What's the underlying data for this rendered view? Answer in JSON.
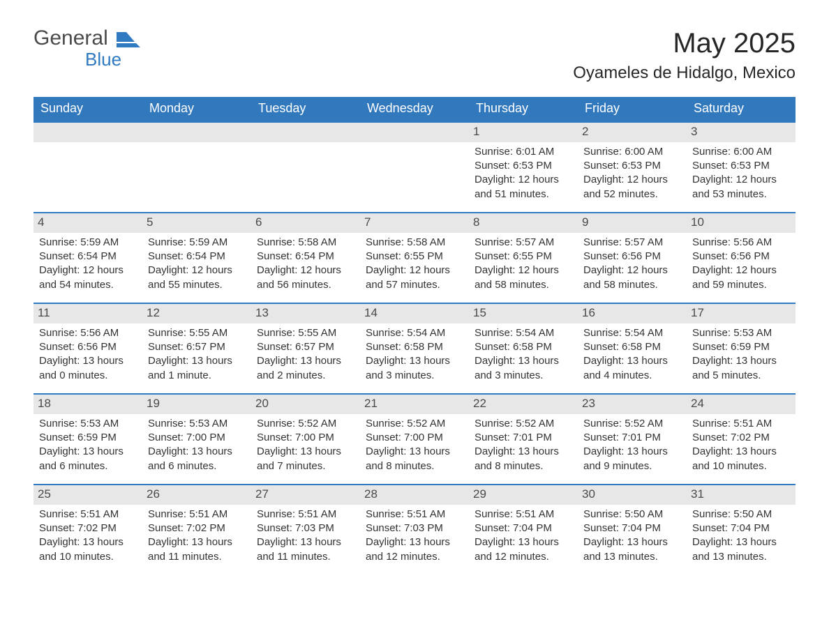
{
  "logo": {
    "word1": "General",
    "word2": "Blue"
  },
  "title": "May 2025",
  "location": "Oyameles de Hidalgo, Mexico",
  "colors": {
    "header_bg": "#3278bd",
    "accent_line": "#2f7ac0",
    "daynum_bg": "#e7e7e7",
    "text": "#333333",
    "logo_gray": "#4a4a4a",
    "logo_blue": "#2f7ac0",
    "page_bg": "#ffffff"
  },
  "day_headers": [
    "Sunday",
    "Monday",
    "Tuesday",
    "Wednesday",
    "Thursday",
    "Friday",
    "Saturday"
  ],
  "labels": {
    "sunrise": "Sunrise: ",
    "sunset": "Sunset: ",
    "daylight": "Daylight: "
  },
  "weeks": [
    [
      {
        "empty": true
      },
      {
        "empty": true
      },
      {
        "empty": true
      },
      {
        "empty": true
      },
      {
        "day": "1",
        "sunrise": "6:01 AM",
        "sunset": "6:53 PM",
        "daylight": "12 hours and 51 minutes."
      },
      {
        "day": "2",
        "sunrise": "6:00 AM",
        "sunset": "6:53 PM",
        "daylight": "12 hours and 52 minutes."
      },
      {
        "day": "3",
        "sunrise": "6:00 AM",
        "sunset": "6:53 PM",
        "daylight": "12 hours and 53 minutes."
      }
    ],
    [
      {
        "day": "4",
        "sunrise": "5:59 AM",
        "sunset": "6:54 PM",
        "daylight": "12 hours and 54 minutes."
      },
      {
        "day": "5",
        "sunrise": "5:59 AM",
        "sunset": "6:54 PM",
        "daylight": "12 hours and 55 minutes."
      },
      {
        "day": "6",
        "sunrise": "5:58 AM",
        "sunset": "6:54 PM",
        "daylight": "12 hours and 56 minutes."
      },
      {
        "day": "7",
        "sunrise": "5:58 AM",
        "sunset": "6:55 PM",
        "daylight": "12 hours and 57 minutes."
      },
      {
        "day": "8",
        "sunrise": "5:57 AM",
        "sunset": "6:55 PM",
        "daylight": "12 hours and 58 minutes."
      },
      {
        "day": "9",
        "sunrise": "5:57 AM",
        "sunset": "6:56 PM",
        "daylight": "12 hours and 58 minutes."
      },
      {
        "day": "10",
        "sunrise": "5:56 AM",
        "sunset": "6:56 PM",
        "daylight": "12 hours and 59 minutes."
      }
    ],
    [
      {
        "day": "11",
        "sunrise": "5:56 AM",
        "sunset": "6:56 PM",
        "daylight": "13 hours and 0 minutes."
      },
      {
        "day": "12",
        "sunrise": "5:55 AM",
        "sunset": "6:57 PM",
        "daylight": "13 hours and 1 minute."
      },
      {
        "day": "13",
        "sunrise": "5:55 AM",
        "sunset": "6:57 PM",
        "daylight": "13 hours and 2 minutes."
      },
      {
        "day": "14",
        "sunrise": "5:54 AM",
        "sunset": "6:58 PM",
        "daylight": "13 hours and 3 minutes."
      },
      {
        "day": "15",
        "sunrise": "5:54 AM",
        "sunset": "6:58 PM",
        "daylight": "13 hours and 3 minutes."
      },
      {
        "day": "16",
        "sunrise": "5:54 AM",
        "sunset": "6:58 PM",
        "daylight": "13 hours and 4 minutes."
      },
      {
        "day": "17",
        "sunrise": "5:53 AM",
        "sunset": "6:59 PM",
        "daylight": "13 hours and 5 minutes."
      }
    ],
    [
      {
        "day": "18",
        "sunrise": "5:53 AM",
        "sunset": "6:59 PM",
        "daylight": "13 hours and 6 minutes."
      },
      {
        "day": "19",
        "sunrise": "5:53 AM",
        "sunset": "7:00 PM",
        "daylight": "13 hours and 6 minutes."
      },
      {
        "day": "20",
        "sunrise": "5:52 AM",
        "sunset": "7:00 PM",
        "daylight": "13 hours and 7 minutes."
      },
      {
        "day": "21",
        "sunrise": "5:52 AM",
        "sunset": "7:00 PM",
        "daylight": "13 hours and 8 minutes."
      },
      {
        "day": "22",
        "sunrise": "5:52 AM",
        "sunset": "7:01 PM",
        "daylight": "13 hours and 8 minutes."
      },
      {
        "day": "23",
        "sunrise": "5:52 AM",
        "sunset": "7:01 PM",
        "daylight": "13 hours and 9 minutes."
      },
      {
        "day": "24",
        "sunrise": "5:51 AM",
        "sunset": "7:02 PM",
        "daylight": "13 hours and 10 minutes."
      }
    ],
    [
      {
        "day": "25",
        "sunrise": "5:51 AM",
        "sunset": "7:02 PM",
        "daylight": "13 hours and 10 minutes."
      },
      {
        "day": "26",
        "sunrise": "5:51 AM",
        "sunset": "7:02 PM",
        "daylight": "13 hours and 11 minutes."
      },
      {
        "day": "27",
        "sunrise": "5:51 AM",
        "sunset": "7:03 PM",
        "daylight": "13 hours and 11 minutes."
      },
      {
        "day": "28",
        "sunrise": "5:51 AM",
        "sunset": "7:03 PM",
        "daylight": "13 hours and 12 minutes."
      },
      {
        "day": "29",
        "sunrise": "5:51 AM",
        "sunset": "7:04 PM",
        "daylight": "13 hours and 12 minutes."
      },
      {
        "day": "30",
        "sunrise": "5:50 AM",
        "sunset": "7:04 PM",
        "daylight": "13 hours and 13 minutes."
      },
      {
        "day": "31",
        "sunrise": "5:50 AM",
        "sunset": "7:04 PM",
        "daylight": "13 hours and 13 minutes."
      }
    ]
  ]
}
